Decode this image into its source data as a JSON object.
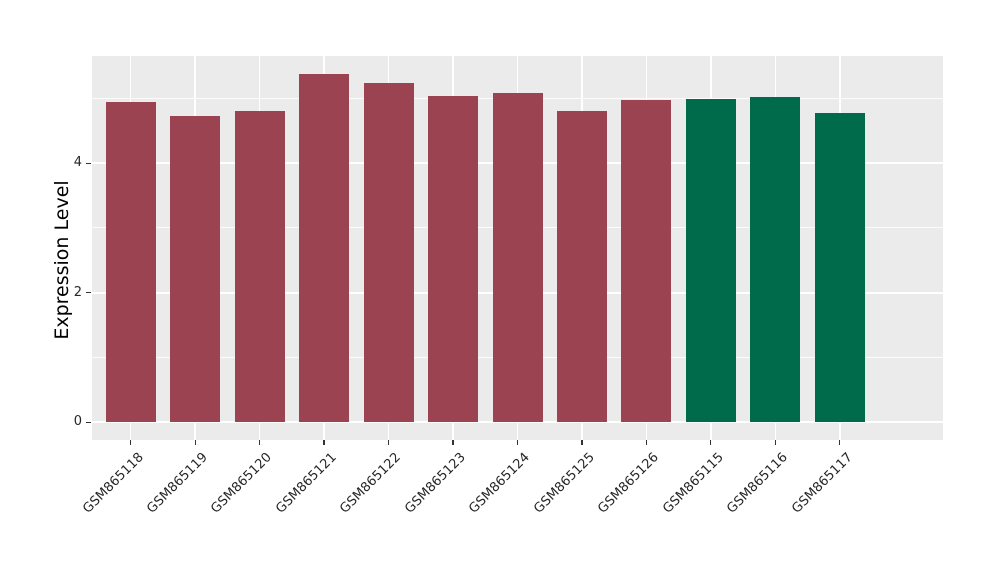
{
  "figure": {
    "background_color": "#ffffff",
    "panel_background_color": "#EBEBEB",
    "gridline_color": "#FFFFFF",
    "axis_text_color": "#262626",
    "tick_mark_color": "#333333"
  },
  "chart_data": {
    "type": "bar",
    "title": "",
    "xlabel": "",
    "ylabel": "Expression Level",
    "categories": [
      "GSM865118",
      "GSM865119",
      "GSM865120",
      "GSM865121",
      "GSM865122",
      "GSM865123",
      "GSM865124",
      "GSM865125",
      "GSM865126",
      "GSM865115",
      "GSM865116",
      "GSM865117"
    ],
    "values": [
      4.94,
      4.72,
      4.8,
      5.38,
      5.24,
      5.04,
      5.08,
      4.8,
      4.97,
      4.99,
      5.02,
      4.77
    ],
    "bar_colors": [
      "#9C4351",
      "#9C4351",
      "#9C4351",
      "#9C4351",
      "#9C4351",
      "#9C4351",
      "#9C4351",
      "#9C4351",
      "#9C4351",
      "#006B4A",
      "#006B4A",
      "#006B4A"
    ],
    "group_colors": {
      "maroon": "#9C4351",
      "green": "#006B4A"
    },
    "ylim": [
      -0.27,
      5.65
    ],
    "yticks": [
      0,
      2,
      4
    ],
    "ytick_labels": [
      "0",
      "2",
      "4"
    ],
    "yticks_minor": [
      1,
      3,
      5
    ],
    "grid": true,
    "legend_position": "none",
    "x_tick_label_rotation_deg": 45
  }
}
